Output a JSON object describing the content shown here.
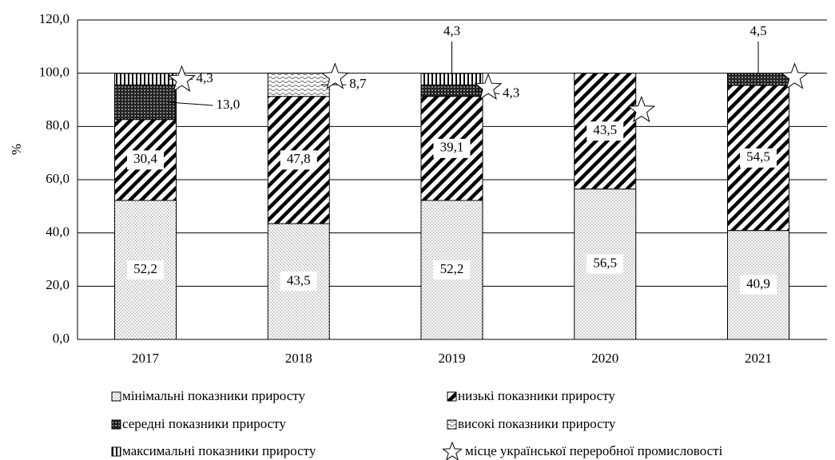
{
  "chart_data": {
    "type": "stacked_bar",
    "y_label": "%",
    "categories": [
      "2017",
      "2018",
      "2019",
      "2020",
      "2021"
    ],
    "ylim": [
      0,
      120
    ],
    "yticks": [
      {
        "value": 0,
        "label": "0,0"
      },
      {
        "value": 20,
        "label": "20,0"
      },
      {
        "value": 40,
        "label": "40,0"
      },
      {
        "value": 60,
        "label": "60,0"
      },
      {
        "value": 80,
        "label": "80,0"
      },
      {
        "value": 100,
        "label": "100,0"
      },
      {
        "value": 120,
        "label": "120,0"
      }
    ],
    "grid": true,
    "series": [
      {
        "name": "мінімальні показники приросту",
        "pattern": "dots",
        "values": [
          52.2,
          43.5,
          52.2,
          56.5,
          40.9
        ],
        "value_labels": [
          "52,2",
          "43,5",
          "52,2",
          "56,5",
          "40,9"
        ]
      },
      {
        "name": "низькі показники приросту",
        "pattern": "diagonal",
        "values": [
          30.4,
          47.8,
          39.1,
          43.5,
          54.5
        ],
        "value_labels": [
          "30,4",
          "47,8",
          "39,1",
          "43,5",
          "54,5"
        ]
      },
      {
        "name": "середні показники приросту",
        "pattern": "dense",
        "values": [
          13.0,
          null,
          4.3,
          null,
          4.5
        ],
        "value_labels": [
          "13,0",
          null,
          "4,3",
          null,
          "4,5"
        ]
      },
      {
        "name": "високі показники приросту",
        "pattern": "wave",
        "values": [
          null,
          8.7,
          null,
          null,
          null
        ],
        "value_labels": [
          null,
          "8,7",
          null,
          null,
          null
        ]
      },
      {
        "name": "максимальні показники приросту",
        "pattern": "vertical",
        "values": [
          4.3,
          null,
          4.3,
          null,
          null
        ],
        "value_labels": [
          "4,3",
          null,
          "4,3",
          null,
          null
        ]
      }
    ],
    "markers": {
      "name": "місце української переробної промисловості",
      "values": [
        97.5,
        98.5,
        94.5,
        86,
        98.5
      ]
    }
  }
}
